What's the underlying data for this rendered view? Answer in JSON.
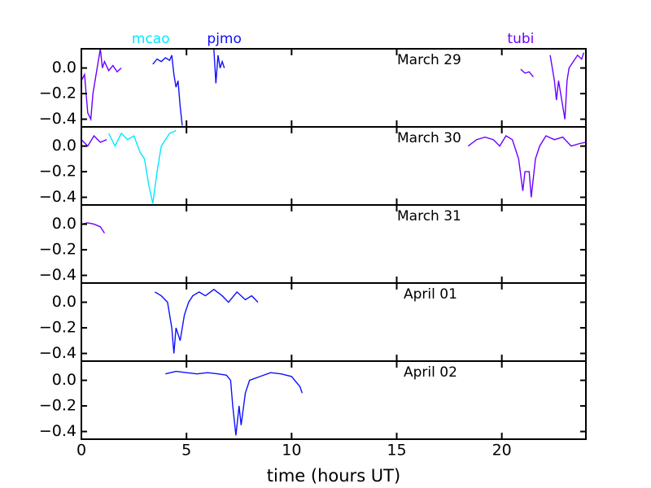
{
  "chart_data": {
    "type": "line",
    "xlabel": "time (hours UT)",
    "xlim": [
      0,
      24
    ],
    "xticks": [
      0,
      5,
      10,
      15,
      20
    ],
    "ylim": [
      -0.46,
      0.15
    ],
    "yticks": [
      {
        "value": 0,
        "label": "0.0"
      },
      {
        "value": -0.2,
        "label": "−0.2"
      },
      {
        "value": -0.4,
        "label": "−0.4"
      }
    ],
    "legend": [
      {
        "name": "mcao",
        "color": "#00e8ff"
      },
      {
        "name": "pjmo",
        "color": "#1010ff"
      },
      {
        "name": "tubi",
        "color": "#6a00ff"
      }
    ],
    "panels": [
      {
        "label": "March 29",
        "series": [
          {
            "color": "#6a00ff",
            "x": [
              0,
              0.15,
              0.3,
              0.45,
              0.55,
              0.7,
              0.8,
              0.9,
              1.0,
              1.1,
              1.3,
              1.5,
              1.7,
              1.9
            ],
            "values": [
              -0.1,
              -0.05,
              -0.35,
              -0.4,
              -0.2,
              -0.05,
              0.05,
              0.15,
              0.0,
              0.05,
              -0.02,
              0.02,
              -0.03,
              0.0
            ]
          },
          {
            "color": "#1010ff",
            "x": [
              3.4,
              3.6,
              3.8,
              4.0,
              4.2,
              4.3,
              4.4,
              4.5,
              4.6,
              4.7,
              4.8
            ],
            "values": [
              0.03,
              0.07,
              0.05,
              0.08,
              0.06,
              0.1,
              -0.05,
              -0.15,
              -0.1,
              -0.3,
              -0.45
            ]
          },
          {
            "color": "#1010ff",
            "x": [
              6.3,
              6.4,
              6.5,
              6.6,
              6.7,
              6.8
            ],
            "values": [
              0.15,
              -0.12,
              0.1,
              0.0,
              0.05,
              0.0
            ]
          },
          {
            "color": "#6a00ff",
            "x": [
              20.9,
              21.1,
              21.3,
              21.5
            ],
            "values": [
              -0.01,
              -0.04,
              -0.03,
              -0.07
            ]
          },
          {
            "color": "#6a00ff",
            "x": [
              22.3,
              22.5,
              22.6,
              22.7,
              22.8,
              23.0,
              23.1,
              23.2,
              23.4,
              23.6,
              23.8,
              23.9
            ],
            "values": [
              0.1,
              -0.1,
              -0.25,
              -0.1,
              -0.2,
              -0.4,
              -0.1,
              0.0,
              0.05,
              0.1,
              0.07,
              0.12
            ]
          }
        ]
      },
      {
        "label": "March 30",
        "series": [
          {
            "color": "#6a00ff",
            "x": [
              0,
              0.3,
              0.6,
              0.9,
              1.2
            ],
            "values": [
              0.05,
              0.0,
              0.08,
              0.03,
              0.05
            ]
          },
          {
            "color": "#00e8ff",
            "x": [
              1.3,
              1.6,
              1.9,
              2.2,
              2.5,
              2.8,
              3.0,
              3.2,
              3.4,
              3.6,
              3.8,
              4.0,
              4.2,
              4.5
            ],
            "values": [
              0.1,
              0.0,
              0.1,
              0.05,
              0.08,
              -0.05,
              -0.1,
              -0.3,
              -0.45,
              -0.2,
              0.0,
              0.05,
              0.1,
              0.12
            ]
          },
          {
            "color": "#6a00ff",
            "x": [
              18.4,
              18.8,
              19.2,
              19.6,
              19.9,
              20.2,
              20.5,
              20.8,
              21.0,
              21.1,
              21.3,
              21.4,
              21.6,
              21.8,
              22.1,
              22.5,
              22.9,
              23.3,
              23.7,
              24.0
            ],
            "values": [
              0.0,
              0.05,
              0.07,
              0.05,
              0.0,
              0.08,
              0.05,
              -0.1,
              -0.35,
              -0.2,
              -0.2,
              -0.4,
              -0.1,
              0.0,
              0.08,
              0.05,
              0.07,
              0.0,
              0.02,
              0.03
            ]
          }
        ]
      },
      {
        "label": "March 31",
        "series": [
          {
            "color": "#6a00ff",
            "x": [
              0,
              0.3,
              0.6,
              0.9,
              1.1
            ],
            "values": [
              0.0,
              0.01,
              0.0,
              -0.02,
              -0.07
            ]
          }
        ]
      },
      {
        "label": "April 01",
        "series": [
          {
            "color": "#1010ff",
            "x": [
              3.5,
              3.8,
              4.1,
              4.3,
              4.4,
              4.5,
              4.7,
              4.9,
              5.1,
              5.3,
              5.6,
              5.9,
              6.3,
              6.7,
              7.0,
              7.4,
              7.8,
              8.1,
              8.4
            ],
            "values": [
              0.08,
              0.05,
              0.0,
              -0.2,
              -0.4,
              -0.2,
              -0.3,
              -0.1,
              0.0,
              0.05,
              0.08,
              0.05,
              0.1,
              0.05,
              0.0,
              0.08,
              0.02,
              0.05,
              0.0
            ]
          }
        ]
      },
      {
        "label": "April 02",
        "series": [
          {
            "color": "#1010ff",
            "x": [
              4.0,
              4.5,
              5.0,
              5.5,
              6.0,
              6.5,
              6.9,
              7.1,
              7.2,
              7.35,
              7.5,
              7.6,
              7.8,
              8.0,
              8.5,
              9.0,
              9.5,
              10.0,
              10.4,
              10.5
            ],
            "values": [
              0.05,
              0.07,
              0.06,
              0.05,
              0.06,
              0.05,
              0.04,
              0.0,
              -0.2,
              -0.43,
              -0.2,
              -0.35,
              -0.1,
              0.0,
              0.03,
              0.06,
              0.05,
              0.03,
              -0.05,
              -0.1
            ]
          }
        ]
      }
    ]
  }
}
